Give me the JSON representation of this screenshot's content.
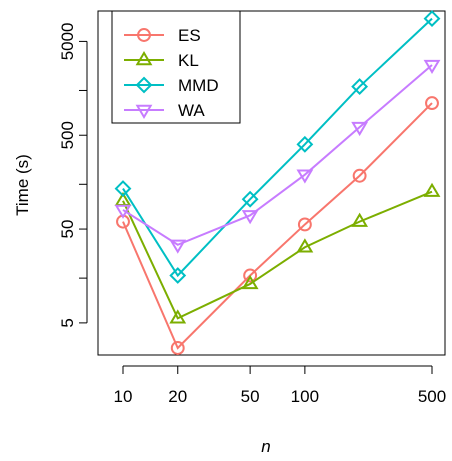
{
  "chart_data": {
    "type": "line",
    "title": "",
    "xlabel": "n",
    "ylabel": "Time (s)",
    "x_scale": "log",
    "y_scale": "log",
    "x": [
      10,
      20,
      50,
      100,
      200,
      500
    ],
    "x_ticks": [
      10,
      20,
      50,
      100,
      500
    ],
    "x_tick_labels": [
      "10",
      "20",
      "50",
      "100",
      "500"
    ],
    "y_ticks": [
      5,
      50,
      500,
      5000
    ],
    "y_tick_labels": [
      "5",
      "50",
      "500",
      "5000"
    ],
    "y_minor_ticks": [
      15,
      150,
      1500
    ],
    "xlim": [
      10,
      500
    ],
    "ylim": [
      2.7,
      9100
    ],
    "legend_position": "top-left",
    "grid": false,
    "series": [
      {
        "name": "ES",
        "color": "#F8766D",
        "marker": "circle",
        "values": [
          60,
          2.7,
          16,
          56,
          185,
          1100
        ]
      },
      {
        "name": "KL",
        "color": "#7CAE00",
        "marker": "triangle-up",
        "values": [
          100,
          5.6,
          13,
          32,
          60,
          125
        ]
      },
      {
        "name": "MMD",
        "color": "#00BFC4",
        "marker": "diamond",
        "values": [
          135,
          16,
          104,
          400,
          1650,
          8750
        ]
      },
      {
        "name": "WA",
        "color": "#C77CFF",
        "marker": "triangle-down",
        "values": [
          80,
          34,
          70,
          190,
          610,
          2800
        ]
      }
    ]
  }
}
